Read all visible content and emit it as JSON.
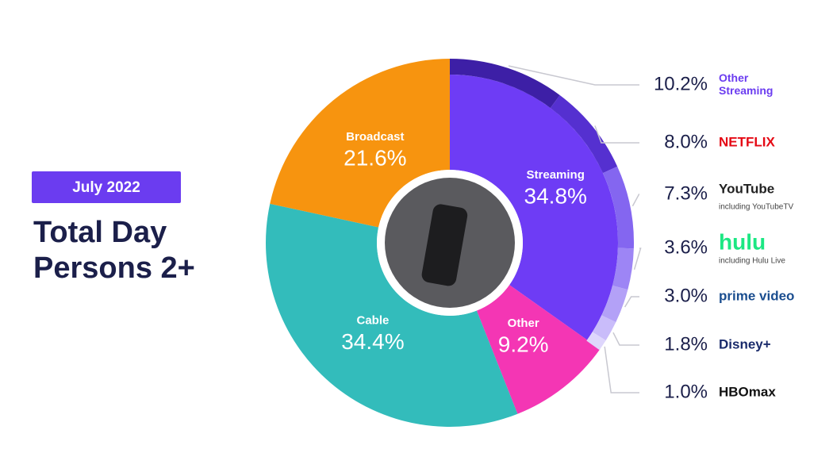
{
  "chart_data": {
    "type": "donut",
    "badge": "July 2022",
    "title": [
      "Total Day",
      "Persons 2+"
    ],
    "categories": [
      "Streaming",
      "Other",
      "Cable",
      "Broadcast"
    ],
    "values": [
      34.8,
      9.2,
      34.4,
      21.6
    ],
    "value_labels": [
      "34.8%",
      "9.2%",
      "34.4%",
      "21.6%"
    ],
    "colors": [
      "#6e3cf5",
      "#f436b4",
      "#33bcbb",
      "#f7940f"
    ],
    "breakdown": {
      "categories": [
        "Other Streaming",
        "NETFLIX",
        "YouTube",
        "hulu",
        "prime video",
        "Disney+",
        "HBOmax"
      ],
      "notes": [
        null,
        null,
        "including YouTubeTV",
        "including Hulu Live",
        null,
        null,
        null
      ],
      "values": [
        10.2,
        8.0,
        7.3,
        3.6,
        3.0,
        1.8,
        1.0
      ],
      "value_labels": [
        "10.2%",
        "8.0%",
        "7.3%",
        "3.6%",
        "3.0%",
        "1.8%",
        "1.0%"
      ],
      "colors": [
        "#3d1fa6",
        "#5530d0",
        "#8466f0",
        "#9d85f5",
        "#b3a1f7",
        "#c9bcfa",
        "#ded6fc"
      ],
      "label_colors": [
        "#6b3cf0",
        "#e50914",
        "#222222",
        "#1ce783",
        "#1a4d8f",
        "#1a2b6b",
        "#111111"
      ]
    }
  }
}
